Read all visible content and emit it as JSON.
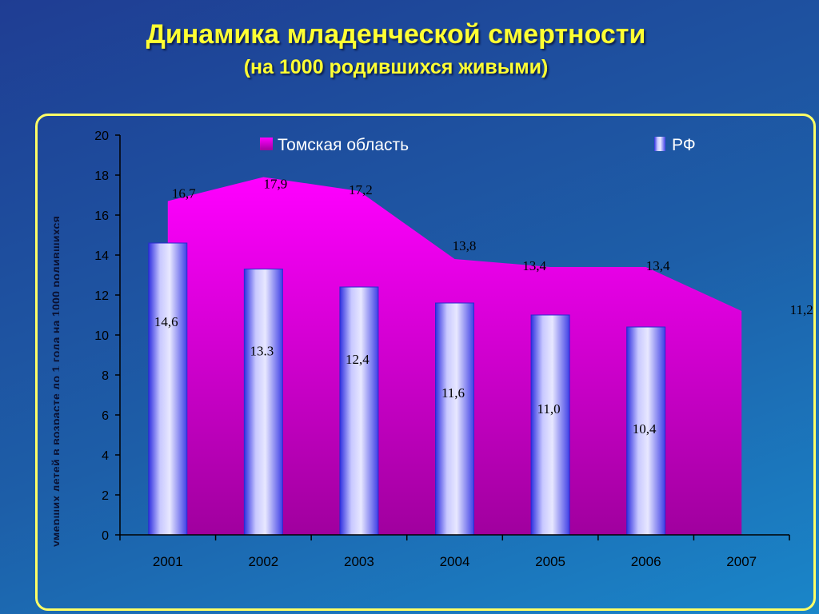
{
  "chart_data": {
    "type": "bar",
    "title": "Динамика младенческой смертности",
    "subtitle": "(на 1000 родившихся живыми)",
    "ylabel": "умерших детей в возрасте до 1 года на 1000 родившихся",
    "ylim": [
      0,
      20
    ],
    "ytick_step": 2,
    "categories": [
      "2001",
      "2002",
      "2003",
      "2004",
      "2005",
      "2006",
      "2007"
    ],
    "series": [
      {
        "name": "Томская область",
        "kind": "area",
        "color": "#ff00ff",
        "values": [
          16.7,
          17.9,
          17.2,
          13.8,
          13.4,
          13.4,
          11.2
        ],
        "labels": [
          "16,7",
          "17,9",
          "17,2",
          "13,8",
          "13,4",
          "13,4",
          "11,2"
        ]
      },
      {
        "name": "РФ",
        "kind": "bar",
        "color": "#6a6af0",
        "values": [
          14.6,
          13.3,
          12.4,
          11.6,
          11.0,
          10.4,
          null
        ],
        "labels": [
          "14,6",
          "13.3",
          "12,4",
          "11,6",
          "11,0",
          "10,4",
          ""
        ]
      }
    ],
    "legend": "top"
  }
}
